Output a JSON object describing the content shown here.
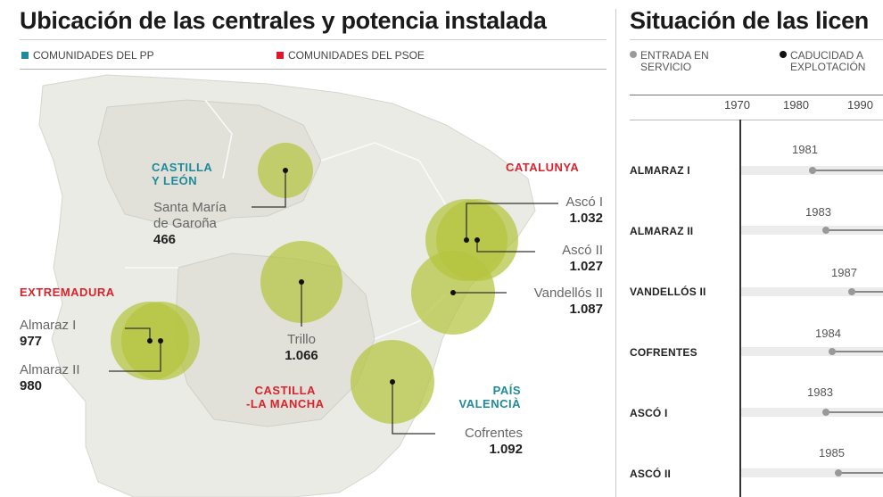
{
  "left": {
    "title": "Ubicación de las centrales y potencia instalada",
    "legend": [
      {
        "label": "COMUNIDADES DEL PP",
        "color": "#1f8a9a"
      },
      {
        "label": "COMUNIDADES DEL PSOE",
        "color": "#e0162b"
      }
    ],
    "regions": {
      "castilla_leon_1": "CASTILLA",
      "castilla_leon_2": "Y LEÓN",
      "catalunya": "CATALUNYA",
      "extremadura": "EXTREMADURA",
      "castilla_mancha_1": "CASTILLA",
      "castilla_mancha_2": "-LA MANCHA",
      "valencia_1": "PAÍS",
      "valencia_2": "VALENCIÀ"
    },
    "plants": [
      {
        "name1": "Santa María",
        "name2": "de Garoña",
        "power": "466"
      },
      {
        "name": "Ascó I",
        "power": "1.032"
      },
      {
        "name": "Ascó II",
        "power": "1.027"
      },
      {
        "name": "Vandellós II",
        "power": "1.087"
      },
      {
        "name": "Almaraz I",
        "power": "977"
      },
      {
        "name": "Almaraz II",
        "power": "980"
      },
      {
        "name": "Trillo",
        "power": "1.066"
      },
      {
        "name": "Cofrentes",
        "power": "1.092"
      }
    ]
  },
  "right": {
    "title": "Situación de las licen",
    "legend": [
      {
        "line1": "ENTRADA EN",
        "line2": "SERVICIO",
        "color": "#9a9a9a"
      },
      {
        "line1": "CADUCIDAD A",
        "line2": "EXPLOTACIÓN",
        "color": "#111111"
      }
    ],
    "years": [
      "1970",
      "1980",
      "1990"
    ],
    "reactors": [
      {
        "name": "ALMARAZ I",
        "start": "1981"
      },
      {
        "name": "ALMARAZ II",
        "start": "1983"
      },
      {
        "name": "VANDELLÓS II",
        "start": "1987"
      },
      {
        "name": "COFRENTES",
        "start": "1984"
      },
      {
        "name": "ASCÓ I",
        "start": "1983"
      },
      {
        "name": "ASCÓ II",
        "start": "1985"
      }
    ]
  }
}
